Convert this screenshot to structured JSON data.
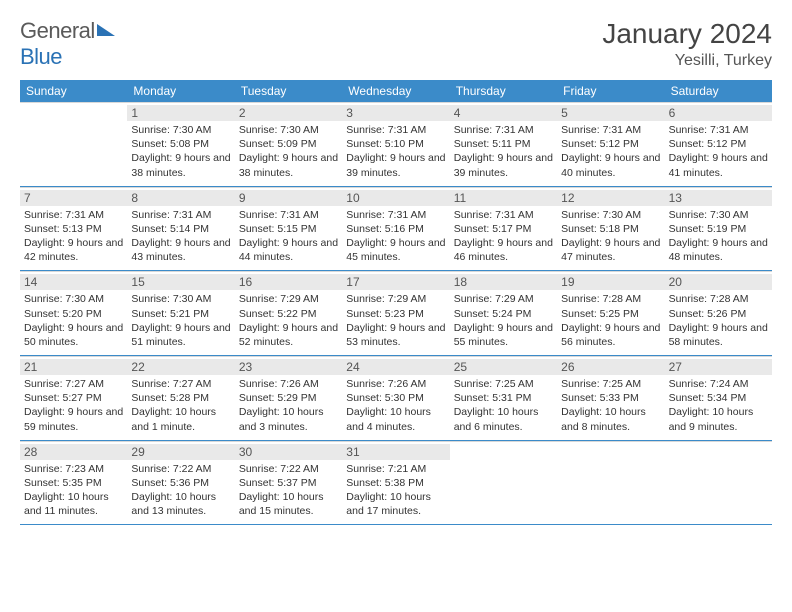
{
  "logo": {
    "text1": "General",
    "text2": "Blue"
  },
  "title": "January 2024",
  "subtitle": "Yesilli, Turkey",
  "colors": {
    "header_bg": "#3b8bc9",
    "header_text": "#ffffff",
    "daynum_bg": "#e9e9e9",
    "week_divider": "#3b8bc9",
    "logo_gray": "#5a5a5a",
    "logo_blue": "#2a72b5"
  },
  "weekdays": [
    "Sunday",
    "Monday",
    "Tuesday",
    "Wednesday",
    "Thursday",
    "Friday",
    "Saturday"
  ],
  "weeks": [
    [
      null,
      {
        "n": "1",
        "sr": "7:30 AM",
        "ss": "5:08 PM",
        "dl": "9 hours and 38 minutes."
      },
      {
        "n": "2",
        "sr": "7:30 AM",
        "ss": "5:09 PM",
        "dl": "9 hours and 38 minutes."
      },
      {
        "n": "3",
        "sr": "7:31 AM",
        "ss": "5:10 PM",
        "dl": "9 hours and 39 minutes."
      },
      {
        "n": "4",
        "sr": "7:31 AM",
        "ss": "5:11 PM",
        "dl": "9 hours and 39 minutes."
      },
      {
        "n": "5",
        "sr": "7:31 AM",
        "ss": "5:12 PM",
        "dl": "9 hours and 40 minutes."
      },
      {
        "n": "6",
        "sr": "7:31 AM",
        "ss": "5:12 PM",
        "dl": "9 hours and 41 minutes."
      }
    ],
    [
      {
        "n": "7",
        "sr": "7:31 AM",
        "ss": "5:13 PM",
        "dl": "9 hours and 42 minutes."
      },
      {
        "n": "8",
        "sr": "7:31 AM",
        "ss": "5:14 PM",
        "dl": "9 hours and 43 minutes."
      },
      {
        "n": "9",
        "sr": "7:31 AM",
        "ss": "5:15 PM",
        "dl": "9 hours and 44 minutes."
      },
      {
        "n": "10",
        "sr": "7:31 AM",
        "ss": "5:16 PM",
        "dl": "9 hours and 45 minutes."
      },
      {
        "n": "11",
        "sr": "7:31 AM",
        "ss": "5:17 PM",
        "dl": "9 hours and 46 minutes."
      },
      {
        "n": "12",
        "sr": "7:30 AM",
        "ss": "5:18 PM",
        "dl": "9 hours and 47 minutes."
      },
      {
        "n": "13",
        "sr": "7:30 AM",
        "ss": "5:19 PM",
        "dl": "9 hours and 48 minutes."
      }
    ],
    [
      {
        "n": "14",
        "sr": "7:30 AM",
        "ss": "5:20 PM",
        "dl": "9 hours and 50 minutes."
      },
      {
        "n": "15",
        "sr": "7:30 AM",
        "ss": "5:21 PM",
        "dl": "9 hours and 51 minutes."
      },
      {
        "n": "16",
        "sr": "7:29 AM",
        "ss": "5:22 PM",
        "dl": "9 hours and 52 minutes."
      },
      {
        "n": "17",
        "sr": "7:29 AM",
        "ss": "5:23 PM",
        "dl": "9 hours and 53 minutes."
      },
      {
        "n": "18",
        "sr": "7:29 AM",
        "ss": "5:24 PM",
        "dl": "9 hours and 55 minutes."
      },
      {
        "n": "19",
        "sr": "7:28 AM",
        "ss": "5:25 PM",
        "dl": "9 hours and 56 minutes."
      },
      {
        "n": "20",
        "sr": "7:28 AM",
        "ss": "5:26 PM",
        "dl": "9 hours and 58 minutes."
      }
    ],
    [
      {
        "n": "21",
        "sr": "7:27 AM",
        "ss": "5:27 PM",
        "dl": "9 hours and 59 minutes."
      },
      {
        "n": "22",
        "sr": "7:27 AM",
        "ss": "5:28 PM",
        "dl": "10 hours and 1 minute."
      },
      {
        "n": "23",
        "sr": "7:26 AM",
        "ss": "5:29 PM",
        "dl": "10 hours and 3 minutes."
      },
      {
        "n": "24",
        "sr": "7:26 AM",
        "ss": "5:30 PM",
        "dl": "10 hours and 4 minutes."
      },
      {
        "n": "25",
        "sr": "7:25 AM",
        "ss": "5:31 PM",
        "dl": "10 hours and 6 minutes."
      },
      {
        "n": "26",
        "sr": "7:25 AM",
        "ss": "5:33 PM",
        "dl": "10 hours and 8 minutes."
      },
      {
        "n": "27",
        "sr": "7:24 AM",
        "ss": "5:34 PM",
        "dl": "10 hours and 9 minutes."
      }
    ],
    [
      {
        "n": "28",
        "sr": "7:23 AM",
        "ss": "5:35 PM",
        "dl": "10 hours and 11 minutes."
      },
      {
        "n": "29",
        "sr": "7:22 AM",
        "ss": "5:36 PM",
        "dl": "10 hours and 13 minutes."
      },
      {
        "n": "30",
        "sr": "7:22 AM",
        "ss": "5:37 PM",
        "dl": "10 hours and 15 minutes."
      },
      {
        "n": "31",
        "sr": "7:21 AM",
        "ss": "5:38 PM",
        "dl": "10 hours and 17 minutes."
      },
      null,
      null,
      null
    ]
  ],
  "labels": {
    "sunrise": "Sunrise:",
    "sunset": "Sunset:",
    "daylight": "Daylight:"
  }
}
